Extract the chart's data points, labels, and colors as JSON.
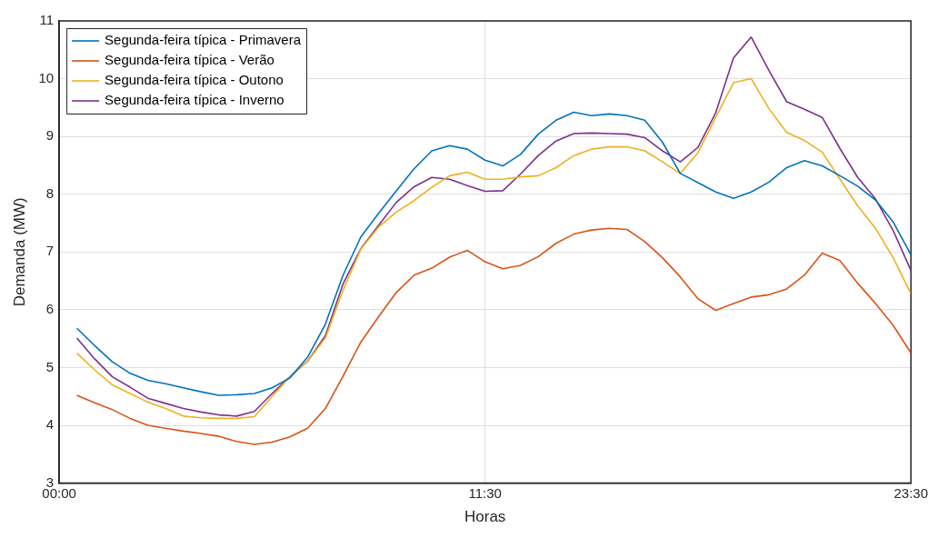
{
  "chart_data": {
    "type": "line",
    "xlabel": "Horas",
    "ylabel": "Demanda (MW)",
    "x": [
      0,
      0.5,
      1,
      1.5,
      2,
      2.5,
      3,
      3.5,
      4,
      4.5,
      5,
      5.5,
      6,
      6.5,
      7,
      7.5,
      8,
      8.5,
      9,
      9.5,
      10,
      10.5,
      11,
      11.5,
      12,
      12.5,
      13,
      13.5,
      14,
      14.5,
      15,
      15.5,
      16,
      16.5,
      17,
      17.5,
      18,
      18.5,
      19,
      19.5,
      20,
      20.5,
      21,
      21.5,
      22,
      22.5,
      23,
      23.5
    ],
    "xlim": [
      -0.5,
      23.5
    ],
    "xticks": [
      {
        "value": -0.5,
        "label": "00:00"
      },
      {
        "value": 11.5,
        "label": "11:30"
      },
      {
        "value": 23.5,
        "label": "23:30"
      }
    ],
    "ylim": [
      3,
      11
    ],
    "yticks": [
      3,
      4,
      5,
      6,
      7,
      8,
      9,
      10,
      11
    ],
    "grid": true,
    "legend": "top left",
    "marker": "none",
    "line_style": "solid",
    "series": [
      {
        "name": "Segunda-feira típica - Primavera",
        "color": "#0072bd",
        "values": [
          5.68,
          5.38,
          5.1,
          4.9,
          4.78,
          4.72,
          4.65,
          4.58,
          4.52,
          4.53,
          4.55,
          4.65,
          4.82,
          5.18,
          5.75,
          6.6,
          7.26,
          7.67,
          8.06,
          8.44,
          8.75,
          8.84,
          8.78,
          8.59,
          8.49,
          8.69,
          9.04,
          9.28,
          9.42,
          9.36,
          9.39,
          9.36,
          9.28,
          8.9,
          8.36,
          8.2,
          8.04,
          7.93,
          8.04,
          8.21,
          8.46,
          8.58,
          8.49,
          8.32,
          8.14,
          7.9,
          7.52,
          6.95
        ]
      },
      {
        "name": "Segunda-feira típica - Verão",
        "color": "#d95319",
        "values": [
          4.52,
          4.39,
          4.27,
          4.12,
          4.0,
          3.95,
          3.9,
          3.86,
          3.81,
          3.72,
          3.67,
          3.71,
          3.8,
          3.95,
          4.29,
          4.85,
          5.44,
          5.88,
          6.3,
          6.6,
          6.72,
          6.91,
          7.03,
          6.83,
          6.71,
          6.77,
          6.92,
          7.15,
          7.31,
          7.38,
          7.41,
          7.39,
          7.18,
          6.9,
          6.57,
          6.19,
          5.99,
          6.11,
          6.22,
          6.26,
          6.36,
          6.6,
          6.98,
          6.85,
          6.46,
          6.11,
          5.73,
          5.25
        ]
      },
      {
        "name": "Segunda-feira típica - Outono",
        "color": "#edb120",
        "values": [
          5.25,
          4.96,
          4.7,
          4.55,
          4.4,
          4.29,
          4.16,
          4.13,
          4.12,
          4.12,
          4.15,
          4.5,
          4.84,
          5.11,
          5.51,
          6.34,
          7.05,
          7.43,
          7.69,
          7.89,
          8.12,
          8.32,
          8.38,
          8.26,
          8.26,
          8.3,
          8.32,
          8.46,
          8.67,
          8.78,
          8.82,
          8.82,
          8.75,
          8.56,
          8.36,
          8.72,
          9.33,
          9.93,
          10.0,
          9.48,
          9.07,
          8.93,
          8.73,
          8.26,
          7.8,
          7.41,
          6.9,
          6.28
        ]
      },
      {
        "name": "Segunda-feira típica - Inverno",
        "color": "#7e2f8e",
        "values": [
          5.51,
          5.15,
          4.84,
          4.66,
          4.47,
          4.38,
          4.29,
          4.23,
          4.18,
          4.16,
          4.24,
          4.55,
          4.84,
          5.11,
          5.55,
          6.45,
          7.06,
          7.46,
          7.86,
          8.13,
          8.29,
          8.26,
          8.15,
          8.05,
          8.06,
          8.35,
          8.67,
          8.92,
          9.05,
          9.06,
          9.05,
          9.04,
          8.98,
          8.75,
          8.56,
          8.81,
          9.41,
          10.36,
          10.72,
          10.14,
          9.6,
          9.47,
          9.33,
          8.79,
          8.29,
          7.92,
          7.37,
          6.68
        ]
      }
    ]
  }
}
